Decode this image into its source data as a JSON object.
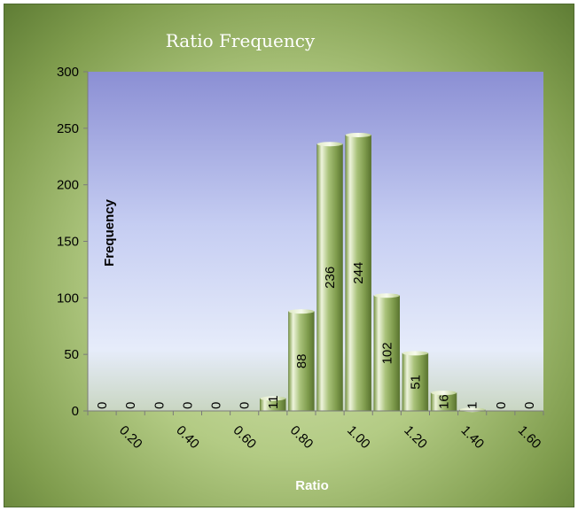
{
  "chart_data": {
    "type": "bar",
    "title": "Ratio Frequency",
    "xlabel": "Ratio",
    "ylabel": "Frequency",
    "ylim": [
      0,
      300
    ],
    "yticks": [
      0,
      50,
      100,
      150,
      200,
      250,
      300
    ],
    "xtick_labels": [
      "0.20",
      "0.40",
      "0.60",
      "0.80",
      "1.00",
      "1.20",
      "1.40",
      "1.60"
    ],
    "categories": [
      "0.1",
      "0.2",
      "0.3",
      "0.4",
      "0.5",
      "0.6",
      "0.7",
      "0.8",
      "0.9",
      "1.0",
      "1.1",
      "1.2",
      "1.3",
      "1.4",
      "1.5",
      "1.6"
    ],
    "values": [
      0,
      0,
      0,
      0,
      0,
      0,
      11,
      88,
      236,
      244,
      102,
      51,
      16,
      1,
      0,
      0
    ],
    "data_labels": [
      "0",
      "0",
      "0",
      "0",
      "0",
      "0",
      "11",
      "88",
      "236",
      "244",
      "102",
      "51",
      "16",
      "1",
      "0",
      "0"
    ],
    "grid": false,
    "legend": "none",
    "colors": {
      "plot_top": "#8b8fd4",
      "plot_bottom": "#e6ecfa",
      "bar_light": "#eef4dc",
      "bar_mid": "#a9c27a",
      "bar_dark": "#6f8c3e",
      "frame_dark": "#5f7d35",
      "title": "#ffffff"
    }
  }
}
